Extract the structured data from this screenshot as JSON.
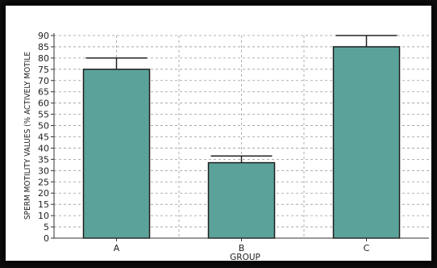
{
  "chart_data": {
    "type": "bar",
    "categories": [
      "A",
      "B",
      "C"
    ],
    "values": [
      75,
      33.5,
      85
    ],
    "errors": [
      5,
      3,
      5
    ],
    "xlabel": "GROUP",
    "ylabel": "SPERM MOTILITY VALUES (% ACTIVELY MOTILE",
    "ylim": [
      0,
      90
    ],
    "yticks": [
      0,
      5,
      10,
      15,
      20,
      25,
      30,
      35,
      40,
      45,
      50,
      55,
      60,
      65,
      70,
      75,
      80,
      85,
      90
    ],
    "grid": true,
    "colors": {
      "bar": "#5ba39a",
      "bar_edge": "#1e1e1e",
      "grid": "#9a9a9a",
      "axis": "#333333"
    }
  }
}
